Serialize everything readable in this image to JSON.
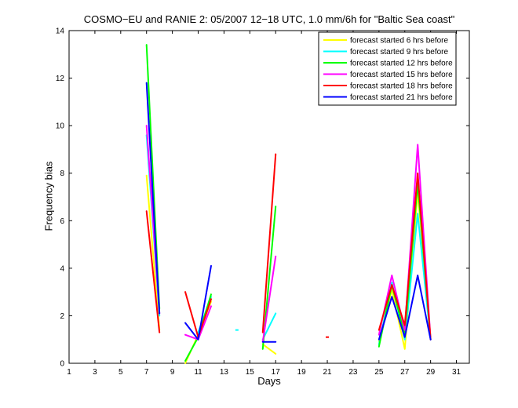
{
  "chart_data": {
    "type": "line",
    "title": "COSMO−EU and RANIE 2: 05/2007 12−18 UTC, 1.0 mm/6h for \"Baltic Sea coast\"",
    "xlabel": "Days",
    "ylabel": "Frequency bias",
    "xlim": [
      1,
      32
    ],
    "ylim": [
      0,
      14
    ],
    "xticks": [
      1,
      3,
      5,
      7,
      9,
      11,
      13,
      15,
      17,
      19,
      21,
      23,
      25,
      27,
      29,
      31
    ],
    "yticks": [
      0,
      2,
      4,
      6,
      8,
      10,
      12,
      14
    ],
    "grid": false,
    "legend_position": "top-right",
    "series": [
      {
        "name": "forecast started 6 hrs before",
        "color": "#ffff00",
        "points": [
          [
            7,
            7.9
          ],
          [
            8,
            1.4
          ],
          [
            10,
            0.0
          ],
          [
            11,
            1.2
          ],
          [
            12,
            2.6
          ],
          [
            16,
            0.8
          ],
          [
            17,
            0.4
          ],
          [
            25,
            0.9
          ],
          [
            26,
            3.1
          ],
          [
            27,
            0.6
          ],
          [
            28,
            7.2
          ],
          [
            29,
            1.1
          ]
        ]
      },
      {
        "name": "forecast started 9 hrs before",
        "color": "#00ffff",
        "points": [
          [
            7,
            9.6
          ],
          [
            8,
            2.0
          ],
          [
            11,
            1.3
          ],
          [
            12,
            2.8
          ],
          [
            14,
            1.4
          ],
          [
            16,
            1.0
          ],
          [
            17,
            2.1
          ],
          [
            25,
            0.8
          ],
          [
            26,
            3.4
          ],
          [
            27,
            1.0
          ],
          [
            28,
            6.3
          ],
          [
            29,
            1.0
          ]
        ]
      },
      {
        "name": "forecast started 12 hrs before",
        "color": "#00ff00",
        "points": [
          [
            7,
            13.4
          ],
          [
            8,
            2.3
          ],
          [
            10,
            0.1
          ],
          [
            11,
            1.1
          ],
          [
            12,
            2.9
          ],
          [
            16,
            0.6
          ],
          [
            17,
            6.6
          ],
          [
            25,
            0.7
          ],
          [
            26,
            3.3
          ],
          [
            27,
            1.2
          ],
          [
            28,
            7.6
          ],
          [
            29,
            1.0
          ]
        ]
      },
      {
        "name": "forecast started 15 hrs before",
        "color": "#ff00ff",
        "points": [
          [
            7,
            10.0
          ],
          [
            8,
            2.1
          ],
          [
            10,
            1.2
          ],
          [
            11,
            1.0
          ],
          [
            12,
            2.4
          ],
          [
            16,
            0.9
          ],
          [
            17,
            4.5
          ],
          [
            25,
            1.2
          ],
          [
            26,
            3.7
          ],
          [
            27,
            1.4
          ],
          [
            28,
            9.2
          ],
          [
            29,
            1.0
          ]
        ]
      },
      {
        "name": "forecast started 18 hrs before",
        "color": "#ff0000",
        "points": [
          [
            7,
            6.4
          ],
          [
            8,
            1.3
          ],
          [
            10,
            3.0
          ],
          [
            11,
            1.1
          ],
          [
            12,
            2.7
          ],
          [
            16,
            1.3
          ],
          [
            17,
            8.8
          ],
          [
            21,
            1.1
          ],
          [
            25,
            1.4
          ],
          [
            26,
            3.3
          ],
          [
            27,
            1.6
          ],
          [
            28,
            8.0
          ],
          [
            29,
            1.0
          ]
        ]
      },
      {
        "name": "forecast started 21 hrs before",
        "color": "#0000ff",
        "points": [
          [
            7,
            11.8
          ],
          [
            8,
            2.1
          ],
          [
            10,
            1.7
          ],
          [
            11,
            1.0
          ],
          [
            12,
            4.1
          ],
          [
            16,
            0.9
          ],
          [
            17,
            0.9
          ],
          [
            25,
            1.0
          ],
          [
            26,
            2.8
          ],
          [
            27,
            1.1
          ],
          [
            28,
            3.7
          ],
          [
            29,
            1.0
          ]
        ]
      }
    ]
  }
}
